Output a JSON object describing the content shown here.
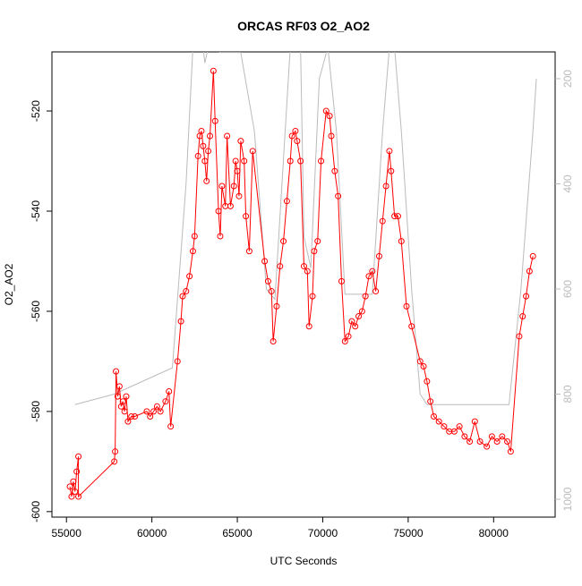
{
  "chart_data": {
    "type": "line",
    "title": "ORCAS RF03 O2_AO2",
    "x_label": "UTC Seconds",
    "y_label": "O2_AO2",
    "xlim": [
      54150,
      83600
    ],
    "ylim": [
      -601.1,
      -508.2
    ],
    "y2lim": [
      1034,
      149
    ],
    "xticks": [
      55000,
      60000,
      65000,
      70000,
      75000,
      80000
    ],
    "yticks": [
      -600,
      -580,
      -560,
      -540,
      -520
    ],
    "y2ticks": [
      200,
      400,
      600,
      800,
      1000
    ],
    "series": [
      {
        "color": "#ff0000",
        "marker": "circle",
        "x": [
          55200,
          55300,
          55400,
          55500,
          55600,
          55700,
          55700,
          57800,
          57850,
          57900,
          58000,
          58100,
          58200,
          58300,
          58400,
          58500,
          58600,
          58800,
          59000,
          59700,
          59900,
          60100,
          60300,
          60500,
          60800,
          61000,
          61100,
          61500,
          61700,
          61800,
          62000,
          62200,
          62400,
          62500,
          62700,
          62800,
          62900,
          63000,
          63100,
          63200,
          63300,
          63400,
          63600,
          63700,
          63900,
          64000,
          64100,
          64300,
          64400,
          64600,
          64800,
          64900,
          65000,
          65100,
          65200,
          65400,
          65500,
          65700,
          65900,
          66600,
          66800,
          67000,
          67100,
          67300,
          67500,
          67700,
          67900,
          68100,
          68200,
          68400,
          68500,
          68700,
          68900,
          69100,
          69200,
          69400,
          69500,
          69700,
          69900,
          70200,
          70400,
          70500,
          70700,
          70900,
          71100,
          71300,
          71500,
          71700,
          71900,
          72100,
          72300,
          72500,
          72700,
          72900,
          73100,
          73300,
          73500,
          73700,
          73900,
          74000,
          74200,
          74400,
          74600,
          74900,
          75200,
          75700,
          75900,
          76100,
          76300,
          76500,
          76800,
          77100,
          77400,
          77700,
          78000,
          78300,
          78600,
          78900,
          79200,
          79600,
          79900,
          80200,
          80500,
          80800,
          81000,
          81500,
          81700,
          81900,
          82100,
          82300
        ],
        "values": [
          -595,
          -597,
          -594,
          -596,
          -592,
          -589,
          -597,
          -590,
          -588,
          -572,
          -577,
          -575,
          -579,
          -578,
          -580,
          -577,
          -582,
          -581,
          -581,
          -580,
          -581,
          -580,
          -579,
          -580,
          -578,
          -576,
          -583,
          -570,
          -562,
          -557,
          -556,
          -553,
          -548,
          -545,
          -529,
          -525,
          -524,
          -527,
          -530,
          -534,
          -528,
          -525,
          -512,
          -522,
          -540,
          -545,
          -535,
          -539,
          -525,
          -539,
          -535,
          -530,
          -532,
          -537,
          -526,
          -530,
          -541,
          -548,
          -528,
          -550,
          -554,
          -556,
          -566,
          -559,
          -551,
          -546,
          -538,
          -530,
          -525,
          -524,
          -526,
          -530,
          -551,
          -552,
          -563,
          -557,
          -548,
          -546,
          -530,
          -520,
          -521,
          -525,
          -532,
          -537,
          -554,
          -566,
          -565,
          -562,
          -563,
          -561,
          -560,
          -557,
          -553,
          -552,
          -556,
          -549,
          -542,
          -535,
          -528,
          -532,
          -541,
          -541,
          -546,
          -559,
          -563,
          -570,
          -571,
          -574,
          -578,
          -581,
          -582,
          -583,
          -584,
          -584,
          -583,
          -585,
          -586,
          -582,
          -586,
          -587,
          -585,
          -586,
          -585,
          -586,
          -588,
          -565,
          -561,
          -557,
          -552,
          -549
        ]
      },
      {
        "color": "#bbbbbb",
        "axis": "y2",
        "x": [
          55500,
          57800,
          61200,
          62000,
          62400,
          63000,
          63100,
          63300,
          63700,
          64000,
          65200,
          66000,
          66700,
          67200,
          67800,
          68100,
          68700,
          68900,
          69300,
          69800,
          70300,
          70800,
          71300,
          72300,
          72900,
          73500,
          73900,
          74200,
          74600,
          75200,
          75700,
          76100,
          80900,
          81600,
          82300,
          82500
        ],
        "values": [
          820,
          800,
          750,
          400,
          140,
          140,
          170,
          140,
          140,
          150,
          150,
          300,
          600,
          620,
          300,
          140,
          140,
          500,
          560,
          200,
          140,
          300,
          610,
          610,
          610,
          300,
          140,
          140,
          300,
          600,
          800,
          820,
          820,
          600,
          300,
          200
        ]
      }
    ]
  }
}
